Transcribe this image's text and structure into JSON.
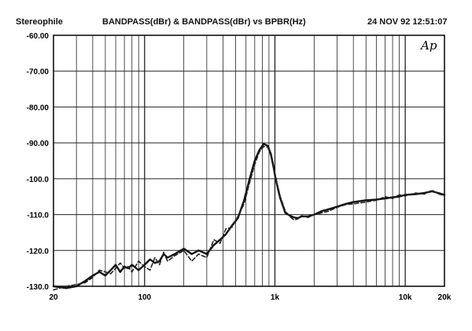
{
  "header": {
    "brand": "Stereophile",
    "title": "BANDPASS(dBr) & BANDPASS(dBr) vs BPBR(Hz)",
    "timestamp": "24 NOV 92 12:51:07",
    "logo": "Ap"
  },
  "chart_data": {
    "type": "line",
    "title": "BANDPASS(dBr) & BANDPASS(dBr) vs BPBR(Hz)",
    "xlabel": "",
    "ylabel": "",
    "xscale": "log",
    "xlim": [
      20,
      20000
    ],
    "ylim": [
      -130,
      -60
    ],
    "y_ticks": [
      "-60.00",
      "-70.00",
      "-80.00",
      "-90.00",
      "-100.0",
      "-110.0",
      "-120.0",
      "-130.0"
    ],
    "x_ticks": [
      {
        "value": 20,
        "label": "20"
      },
      {
        "value": 100,
        "label": "100"
      },
      {
        "value": 1000,
        "label": "1k"
      },
      {
        "value": 10000,
        "label": "10k"
      },
      {
        "value": 20000,
        "label": "20k"
      }
    ],
    "grid": true,
    "series": [
      {
        "style": "solid",
        "color": "#111111",
        "x": [
          20,
          25,
          30,
          35,
          40,
          45,
          50,
          55,
          60,
          65,
          70,
          75,
          80,
          90,
          100,
          110,
          120,
          130,
          140,
          150,
          170,
          200,
          230,
          260,
          300,
          340,
          380,
          420,
          470,
          520,
          580,
          640,
          700,
          760,
          820,
          880,
          930,
          980,
          1000,
          1050,
          1100,
          1150,
          1200,
          1300,
          1400,
          1500,
          1600,
          1800,
          2000,
          2300,
          2600,
          3000,
          3500,
          4000,
          5000,
          6000,
          7000,
          8000,
          9000,
          10000,
          12000,
          14000,
          16000,
          18000,
          20000
        ],
        "y": [
          -130,
          -130.5,
          -130,
          -128.5,
          -127,
          -126,
          -127,
          -125.5,
          -124,
          -126,
          -124.5,
          -125,
          -124,
          -125.5,
          -124,
          -122.5,
          -123.5,
          -123,
          -121,
          -122,
          -121,
          -119.5,
          -121,
          -120,
          -121,
          -118.5,
          -117,
          -115.5,
          -113,
          -111,
          -106,
          -100,
          -95,
          -92,
          -90.3,
          -90.8,
          -93,
          -97,
          -99,
          -102.5,
          -105.5,
          -107.5,
          -109.5,
          -110.3,
          -110.8,
          -111,
          -110.5,
          -110.5,
          -110,
          -109,
          -108.5,
          -107.8,
          -107,
          -106.5,
          -106,
          -105.8,
          -105.5,
          -105.2,
          -105,
          -104.5,
          -104.3,
          -104,
          -103.5,
          -104,
          -104.5
        ]
      },
      {
        "style": "dashed",
        "color": "#222222",
        "x": [
          20,
          25,
          30,
          35,
          40,
          45,
          50,
          55,
          60,
          65,
          70,
          75,
          80,
          90,
          100,
          110,
          120,
          130,
          140,
          150,
          170,
          200,
          230,
          260,
          300,
          340,
          380,
          420,
          470,
          520,
          580,
          640,
          700,
          760,
          820,
          880,
          930,
          980,
          1000,
          1050,
          1100,
          1150,
          1200,
          1300,
          1400,
          1500,
          1600,
          1800,
          2000,
          2300,
          2600,
          3000,
          3500,
          4000,
          5000,
          6000,
          7000,
          8000,
          9000,
          10000,
          12000,
          14000,
          16000,
          18000,
          20000
        ],
        "y": [
          -131,
          -130,
          -129.5,
          -129,
          -127.5,
          -125.5,
          -126,
          -126.5,
          -125,
          -123.5,
          -125,
          -124.5,
          -126,
          -123,
          -124.5,
          -125.5,
          -122,
          -124,
          -120.5,
          -123,
          -121.5,
          -120,
          -123,
          -121,
          -122,
          -117,
          -118,
          -114,
          -113.5,
          -110.5,
          -107,
          -101,
          -96,
          -92.5,
          -91,
          -91.2,
          -93.5,
          -97.5,
          -99.5,
          -102,
          -105,
          -107,
          -109,
          -110.5,
          -111.5,
          -111.2,
          -110.3,
          -110.8,
          -110,
          -109.5,
          -109,
          -108,
          -107.2,
          -107,
          -106.5,
          -106,
          -105,
          -105.5,
          -104.5,
          -104.8,
          -104,
          -104.3,
          -103.2,
          -104.2,
          -104.8
        ]
      }
    ]
  }
}
